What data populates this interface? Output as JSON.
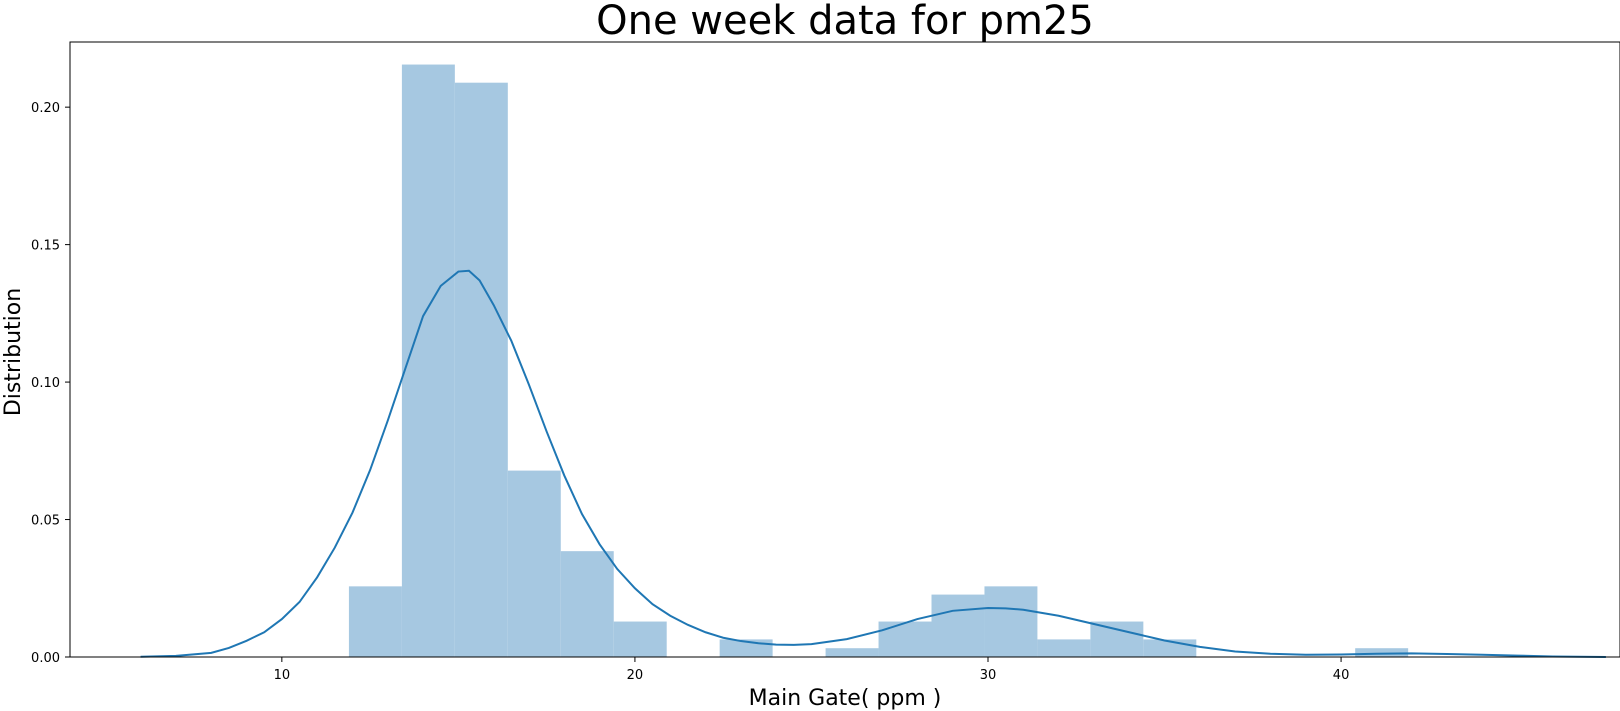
{
  "chart_data": {
    "type": "bar",
    "title": "One week data for pm25",
    "xlabel": "Main Gate( ppm )",
    "ylabel": "Distribution",
    "xlim": [
      4.0,
      47.9
    ],
    "ylim": [
      0.0,
      0.2237
    ],
    "x_ticks": [
      10,
      20,
      30,
      40
    ],
    "y_ticks": [
      0.0,
      0.05,
      0.1,
      0.15,
      0.2
    ],
    "x_tick_labels": [
      "10",
      "20",
      "30",
      "40"
    ],
    "y_tick_labels": [
      "0.00",
      "0.05",
      "0.10",
      "0.15",
      "0.20"
    ],
    "grid": false,
    "histogram": {
      "color": "#a6c8e1",
      "bins": [
        {
          "x0": 11.9,
          "x1": 13.4,
          "value": 0.0257
        },
        {
          "x0": 13.4,
          "x1": 14.9,
          "value": 0.2155
        },
        {
          "x0": 14.9,
          "x1": 16.4,
          "value": 0.2089
        },
        {
          "x0": 16.4,
          "x1": 17.9,
          "value": 0.0678
        },
        {
          "x0": 17.9,
          "x1": 19.4,
          "value": 0.0385
        },
        {
          "x0": 19.4,
          "x1": 20.9,
          "value": 0.0129
        },
        {
          "x0": 22.4,
          "x1": 23.9,
          "value": 0.0064
        },
        {
          "x0": 25.4,
          "x1": 26.9,
          "value": 0.0032
        },
        {
          "x0": 26.9,
          "x1": 28.4,
          "value": 0.0129
        },
        {
          "x0": 28.4,
          "x1": 29.9,
          "value": 0.0227
        },
        {
          "x0": 29.9,
          "x1": 31.4,
          "value": 0.0257
        },
        {
          "x0": 31.4,
          "x1": 32.9,
          "value": 0.0064
        },
        {
          "x0": 32.9,
          "x1": 34.4,
          "value": 0.0129
        },
        {
          "x0": 34.4,
          "x1": 35.9,
          "value": 0.0064
        },
        {
          "x0": 40.4,
          "x1": 41.9,
          "value": 0.0032
        }
      ]
    },
    "kde": {
      "color": "#1f77b4",
      "x": [
        6.0,
        7.0,
        8.0,
        8.5,
        9.0,
        9.5,
        10.0,
        10.5,
        11.0,
        11.5,
        12.0,
        12.5,
        13.0,
        13.5,
        14.0,
        14.5,
        15.0,
        15.3,
        15.6,
        16.0,
        16.5,
        17.0,
        17.5,
        18.0,
        18.5,
        19.0,
        19.5,
        20.0,
        20.5,
        21.0,
        21.5,
        22.0,
        22.5,
        23.0,
        23.5,
        24.0,
        24.5,
        25.0,
        26.0,
        27.0,
        28.0,
        29.0,
        30.0,
        30.5,
        31.0,
        32.0,
        33.0,
        34.0,
        35.0,
        36.0,
        37.0,
        38.0,
        39.0,
        40.0,
        41.0,
        42.0,
        43.0,
        44.0,
        45.0,
        46.0,
        47.5
      ],
      "y": [
        0.0001,
        0.0004,
        0.0015,
        0.0033,
        0.0059,
        0.009,
        0.0138,
        0.02,
        0.029,
        0.0398,
        0.0525,
        0.068,
        0.086,
        0.105,
        0.124,
        0.135,
        0.1402,
        0.1405,
        0.137,
        0.128,
        0.115,
        0.099,
        0.082,
        0.066,
        0.052,
        0.041,
        0.032,
        0.025,
        0.0192,
        0.015,
        0.0117,
        0.009,
        0.007,
        0.0058,
        0.005,
        0.0045,
        0.0044,
        0.0047,
        0.0065,
        0.0097,
        0.0138,
        0.0168,
        0.0178,
        0.0177,
        0.0172,
        0.015,
        0.012,
        0.009,
        0.006,
        0.0037,
        0.002,
        0.0012,
        0.0008,
        0.0009,
        0.0012,
        0.0013,
        0.0011,
        0.0008,
        0.0005,
        0.0002,
        0.0
      ]
    }
  }
}
